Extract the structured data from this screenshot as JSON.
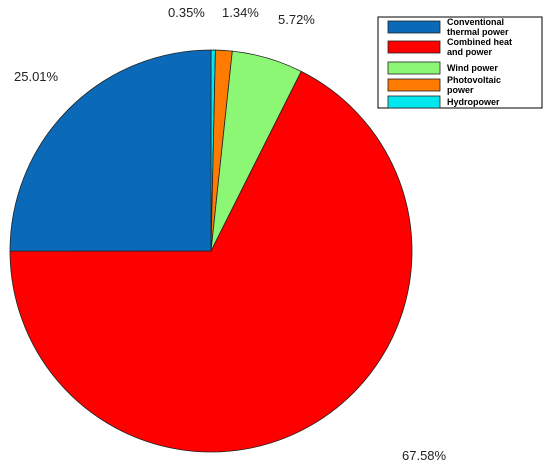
{
  "chart_data": {
    "type": "pie",
    "title": "",
    "legend_position": "top-right",
    "slices": [
      {
        "name": "Conventional thermal power",
        "legend_lines": [
          "Conventional",
          "thermal power"
        ],
        "value": 25.01,
        "label": "25.01%",
        "color": "#0a6ab8"
      },
      {
        "name": "Combined heat and power",
        "legend_lines": [
          "Combined heat",
          "and power"
        ],
        "value": 67.58,
        "label": "67.58%",
        "color": "#ff0000"
      },
      {
        "name": "Wind power",
        "legend_lines": [
          "Wind power"
        ],
        "value": 5.72,
        "label": "5.72%",
        "color": "#8cf774"
      },
      {
        "name": "Photovoltaic power",
        "legend_lines": [
          "Photovoltaic",
          "power"
        ],
        "value": 1.34,
        "label": "1.34%",
        "color": "#ff7a00"
      },
      {
        "name": "Hydropower",
        "legend_lines": [
          "Hydropower"
        ],
        "value": 0.35,
        "label": "0.35%",
        "color": "#00e8ee"
      }
    ]
  }
}
